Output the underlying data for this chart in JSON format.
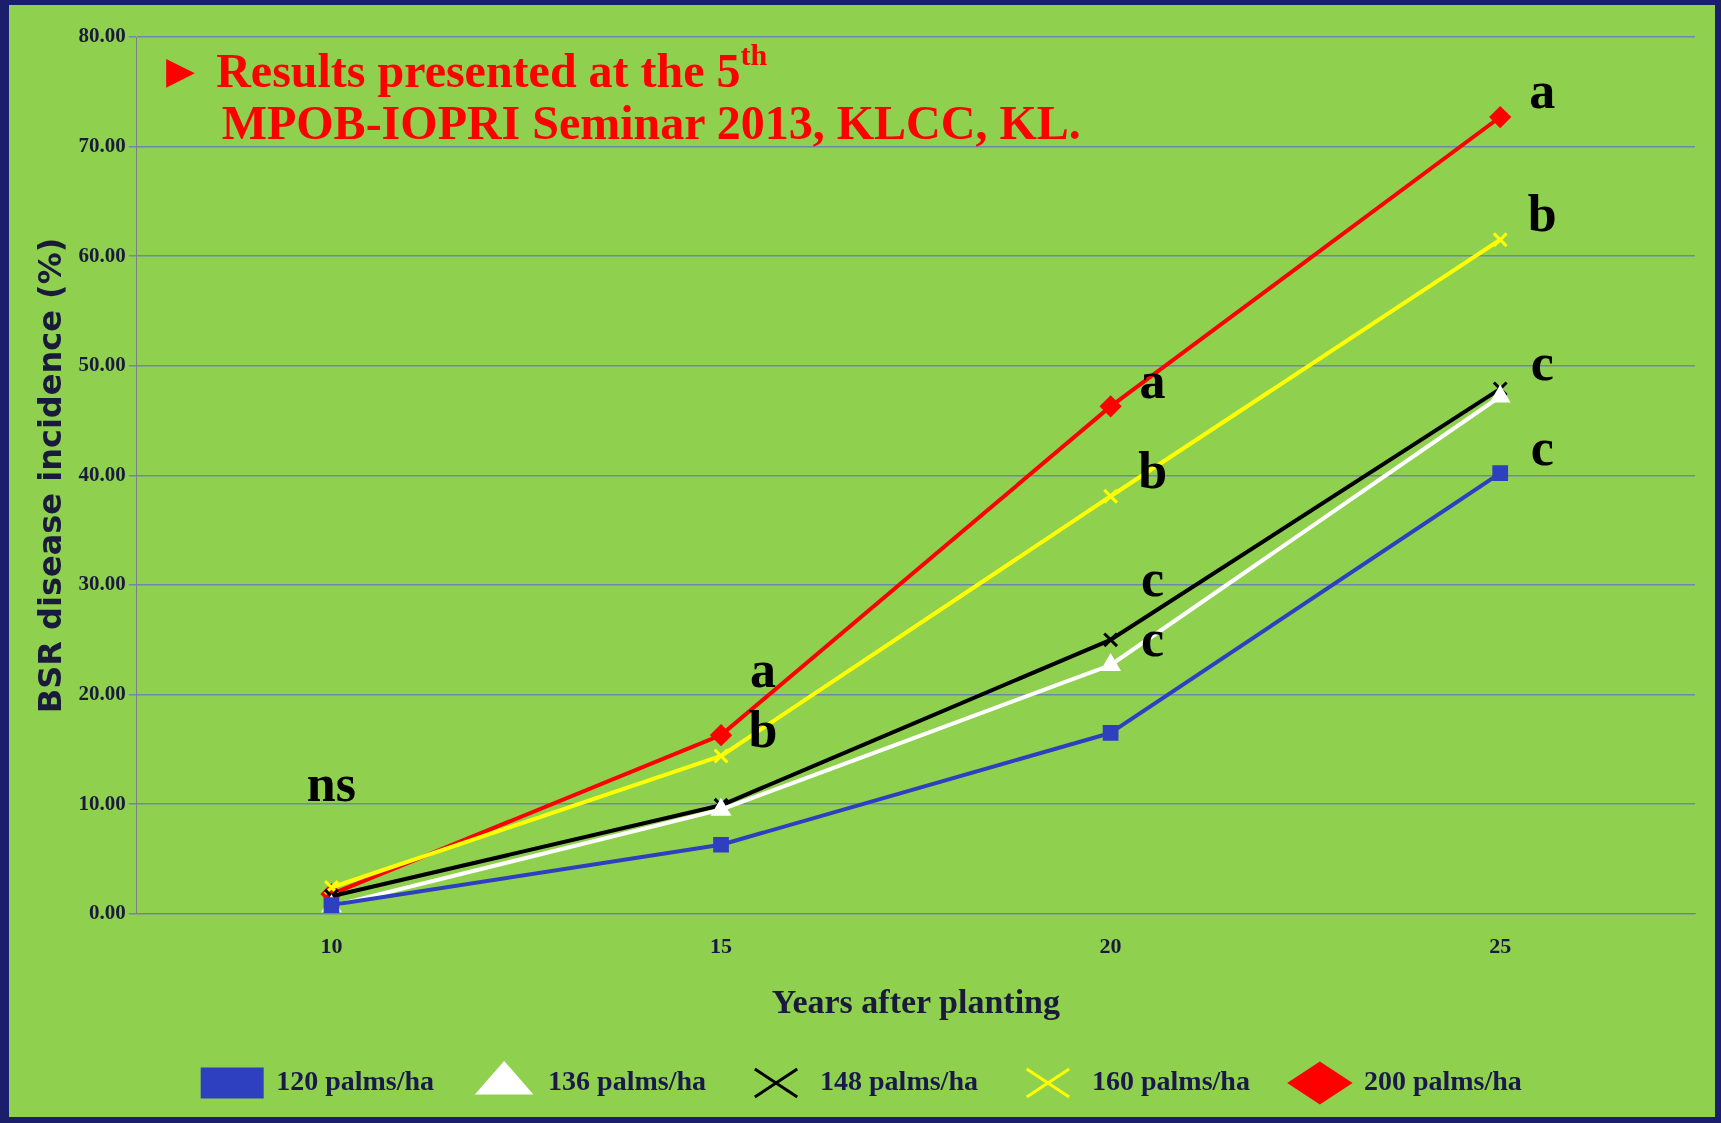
{
  "chart_data": {
    "type": "line",
    "xlabel": "Years after planting",
    "ylabel": "BSR disease incidence (%)",
    "categories": [
      "10",
      "15",
      "20",
      "25"
    ],
    "series": [
      {
        "name": "120 palms/ha",
        "color": "#2e3fbf",
        "marker": "square",
        "values": [
          0.8,
          6.3,
          16.5,
          40.2
        ]
      },
      {
        "name": "136 palms/ha",
        "color": "#ffffff",
        "marker": "triangle",
        "values": [
          0.7,
          9.5,
          22.7,
          47.2
        ]
      },
      {
        "name": "148 palms/ha",
        "color": "#000000",
        "marker": "cross",
        "values": [
          1.6,
          9.9,
          25.0,
          47.9
        ]
      },
      {
        "name": "160 palms/ha",
        "color": "#ffff00",
        "marker": "cross",
        "values": [
          2.4,
          14.4,
          38.1,
          61.5
        ]
      },
      {
        "name": "200 palms/ha",
        "color": "#ff0000",
        "marker": "diamond",
        "values": [
          1.8,
          16.3,
          46.3,
          72.7
        ]
      }
    ],
    "ylim": [
      0,
      80
    ],
    "yticks": [
      {
        "value": 0,
        "label": "0.00"
      },
      {
        "value": 10,
        "label": "10.00"
      },
      {
        "value": 20,
        "label": "20.00"
      },
      {
        "value": 30,
        "label": "30.00"
      },
      {
        "value": 40,
        "label": "40.00"
      },
      {
        "value": 50,
        "label": "50.00"
      },
      {
        "value": 60,
        "label": "60.00"
      },
      {
        "value": 70,
        "label": "70.00"
      },
      {
        "value": 80,
        "label": "80.00"
      }
    ],
    "grid": "y",
    "legend": "bottom",
    "line_style": "solid",
    "annotations": [
      "► Results presented at the 5$^{th}$\nMPOB-IOPRI Seminar 2013, KLCC, KL.",
      {
        "text": "ns",
        "x": "10",
        "y": 2.4
      },
      {
        "text": "a",
        "x": "15",
        "y": 16.3
      },
      {
        "text": "b",
        "x": "15",
        "y": 14.4
      },
      {
        "text": "a",
        "x": "20",
        "y": 46.3
      },
      {
        "text": "b",
        "x": "20",
        "y": 38.1
      },
      {
        "text": "c",
        "x": "20",
        "y": 25.0
      },
      {
        "text": "c",
        "x": "20",
        "y": 22.7
      },
      {
        "text": "a",
        "x": "25",
        "y": 72.7
      },
      {
        "text": "b",
        "x": "25",
        "y": 61.5
      },
      {
        "text": "c",
        "x": "25",
        "y": 47.9
      },
      {
        "text": "c",
        "x": "25",
        "y": 40.2
      }
    ]
  }
}
